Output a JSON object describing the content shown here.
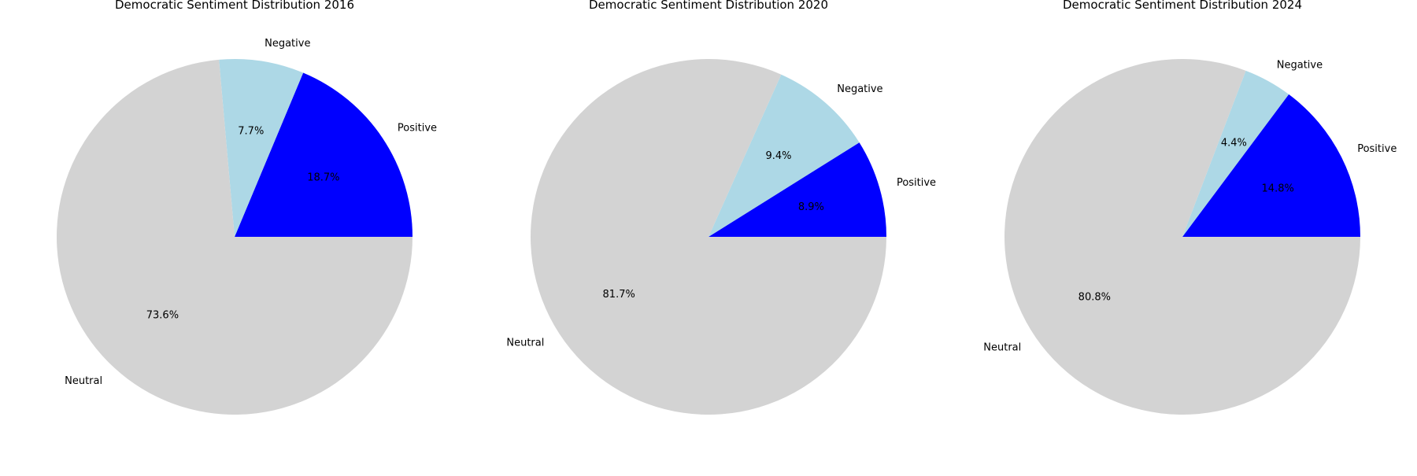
{
  "chart_data": [
    {
      "type": "pie",
      "title": "Democratic Sentiment Distribution 2016",
      "start_angle_deg": 0,
      "direction": "counterclockwise",
      "slices": [
        {
          "label": "Positive",
          "value": 18.7,
          "pct_label": "18.7%",
          "color": "#0000ff"
        },
        {
          "label": "Negative",
          "value": 7.7,
          "pct_label": "7.7%",
          "color": "#add8e6"
        },
        {
          "label": "Neutral",
          "value": 73.6,
          "pct_label": "73.6%",
          "color": "#d3d3d3"
        }
      ]
    },
    {
      "type": "pie",
      "title": "Democratic Sentiment Distribution 2020",
      "start_angle_deg": 0,
      "direction": "counterclockwise",
      "slices": [
        {
          "label": "Positive",
          "value": 8.9,
          "pct_label": "8.9%",
          "color": "#0000ff"
        },
        {
          "label": "Negative",
          "value": 9.4,
          "pct_label": "9.4%",
          "color": "#add8e6"
        },
        {
          "label": "Neutral",
          "value": 81.7,
          "pct_label": "81.7%",
          "color": "#d3d3d3"
        }
      ]
    },
    {
      "type": "pie",
      "title": "Democratic Sentiment Distribution 2024",
      "start_angle_deg": 0,
      "direction": "counterclockwise",
      "slices": [
        {
          "label": "Positive",
          "value": 14.8,
          "pct_label": "14.8%",
          "color": "#0000ff"
        },
        {
          "label": "Negative",
          "value": 4.4,
          "pct_label": "4.4%",
          "color": "#add8e6"
        },
        {
          "label": "Neutral",
          "value": 80.8,
          "pct_label": "80.8%",
          "color": "#d3d3d3"
        }
      ]
    }
  ]
}
